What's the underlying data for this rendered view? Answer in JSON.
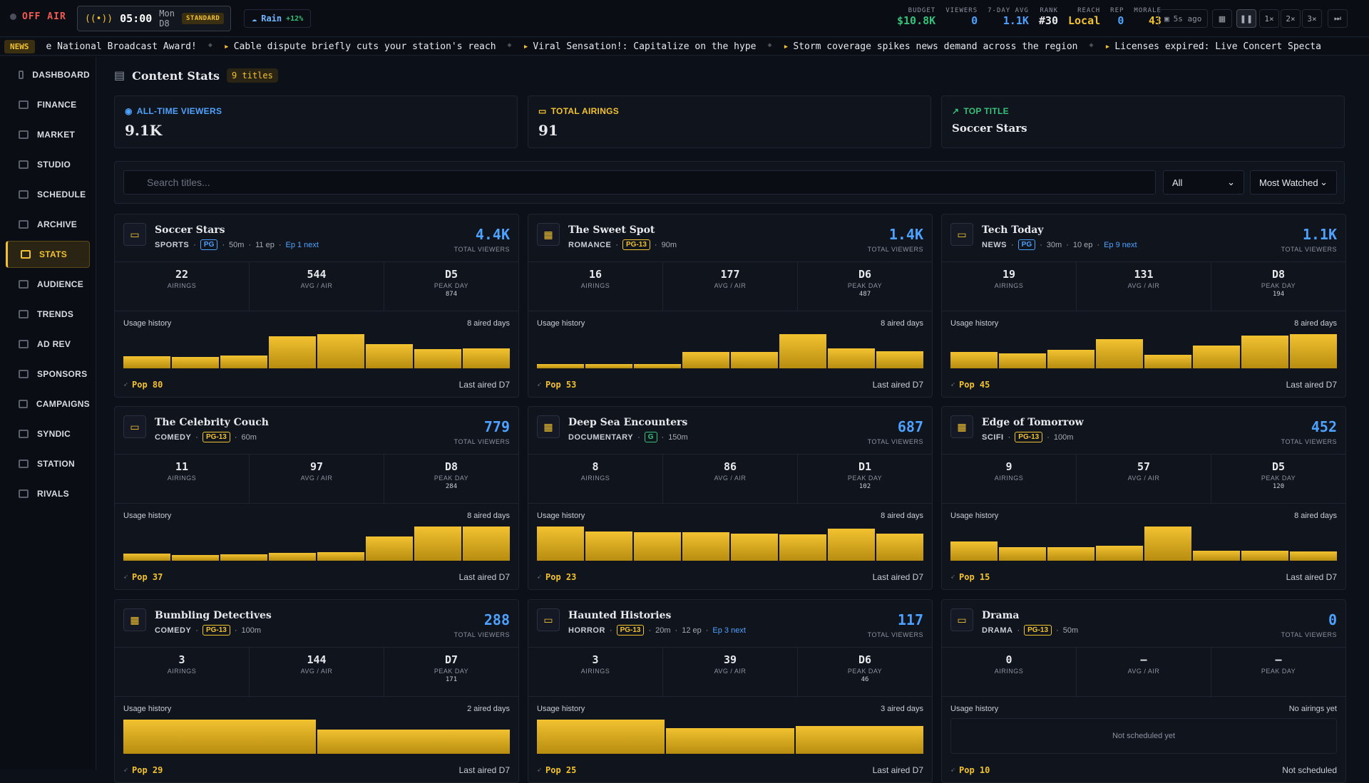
{
  "topbar": {
    "status": "OFF AIR",
    "time": "05:00",
    "day": "Mon D8",
    "speed_mode": "STANDARD",
    "weather": "Rain",
    "weather_mod": "+12%",
    "stats": [
      {
        "label": "BUDGET",
        "value": "$10.8K",
        "color": "#36c27a"
      },
      {
        "label": "VIEWERS",
        "value": "0",
        "color": "#4ea2ff"
      },
      {
        "label": "7-DAY AVG",
        "value": "1.1K",
        "color": "#4ea2ff"
      },
      {
        "label": "RANK",
        "value": "#30",
        "color": "#e6e8ec"
      },
      {
        "label": "REACH",
        "value": "Local",
        "color": "#f2c230"
      },
      {
        "label": "REP",
        "value": "0",
        "color": "#4ea2ff"
      },
      {
        "label": "MORALE",
        "value": "43",
        "color": "#f2c230"
      }
    ],
    "saved": "5s ago",
    "speeds": [
      "1×",
      "2×",
      "3×"
    ]
  },
  "ticker": {
    "badge": "NEWS",
    "items": [
      "e National Broadcast Award!",
      "Cable dispute briefly cuts your station's reach",
      "Viral Sensation!: Capitalize on the hype",
      "Storm coverage spikes news demand across the region",
      "Licenses expired: Live Concert Specta"
    ]
  },
  "sidebar": [
    "DASHBOARD",
    "FINANCE",
    "MARKET",
    "STUDIO",
    "SCHEDULE",
    "ARCHIVE",
    "STATS",
    "AUDIENCE",
    "TRENDS",
    "AD REV",
    "SPONSORS",
    "CAMPAIGNS",
    "SYNDIC",
    "STATION",
    "RIVALS"
  ],
  "page": {
    "title": "Content Stats",
    "count": "9 titles"
  },
  "kpis": [
    {
      "label": "ALL-TIME VIEWERS",
      "value": "9.1K",
      "color": "#4ea2ff",
      "icon": "eye-icon"
    },
    {
      "label": "TOTAL AIRINGS",
      "value": "91",
      "color": "#f2c230",
      "icon": "tv-icon"
    },
    {
      "label": "TOP TITLE",
      "value": "Soccer Stars",
      "color": "#36c27a",
      "icon": "trend-up-icon"
    }
  ],
  "filters": {
    "search_placeholder": "Search titles...",
    "category": "All",
    "sort": "Most Watched"
  },
  "labels": {
    "total_viewers": "TOTAL VIEWERS",
    "airings": "AIRINGS",
    "avg": "AVG / AIR",
    "peak": "PEAK DAY",
    "usage": "Usage history",
    "last_prefix": "Last aired"
  },
  "cards": [
    {
      "title": "Soccer Stars",
      "genre": "SPORTS",
      "rating": "PG",
      "runtime": "50m",
      "episodes": "11 ep",
      "next": "Ep 1 next",
      "viewers": "4.4K",
      "airings": "22",
      "avg": "544",
      "peak": "D5",
      "peak_val": "874",
      "days": "8 aired days",
      "usage": [
        0.35,
        0.33,
        0.37,
        0.93,
        1.0,
        0.7,
        0.57,
        0.58
      ],
      "pop": "Pop 80",
      "last": "Last aired D7",
      "icon": "tv-icon"
    },
    {
      "title": "The Sweet Spot",
      "genre": "ROMANCE",
      "rating": "PG-13",
      "runtime": "90m",
      "episodes": "",
      "next": "",
      "viewers": "1.4K",
      "airings": "16",
      "avg": "177",
      "peak": "D6",
      "peak_val": "487",
      "days": "8 aired days",
      "usage": [
        0.13,
        0.13,
        0.13,
        0.47,
        0.47,
        1.0,
        0.58,
        0.5
      ],
      "pop": "Pop 53",
      "last": "Last aired D7",
      "icon": "film-icon"
    },
    {
      "title": "Tech Today",
      "genre": "NEWS",
      "rating": "PG",
      "runtime": "30m",
      "episodes": "10 ep",
      "next": "Ep 9 next",
      "viewers": "1.1K",
      "airings": "19",
      "avg": "131",
      "peak": "D8",
      "peak_val": "194",
      "days": "8 aired days",
      "usage": [
        0.48,
        0.43,
        0.55,
        0.85,
        0.4,
        0.67,
        0.96,
        1.0
      ],
      "pop": "Pop 45",
      "last": "Last aired D7",
      "icon": "tv-icon"
    },
    {
      "title": "The Celebrity Couch",
      "genre": "COMEDY",
      "rating": "PG-13",
      "runtime": "60m",
      "episodes": "",
      "next": "",
      "viewers": "779",
      "airings": "11",
      "avg": "97",
      "peak": "D8",
      "peak_val": "284",
      "days": "8 aired days",
      "usage": [
        0.2,
        0.16,
        0.19,
        0.23,
        0.25,
        0.7,
        1.0,
        1.0
      ],
      "pop": "Pop 37",
      "last": "Last aired D7",
      "icon": "tv-icon"
    },
    {
      "title": "Deep Sea Encounters",
      "genre": "DOCUMENTARY",
      "rating": "G",
      "runtime": "150m",
      "episodes": "",
      "next": "",
      "viewers": "687",
      "airings": "8",
      "avg": "86",
      "peak": "D1",
      "peak_val": "102",
      "days": "8 aired days",
      "usage": [
        1.0,
        0.86,
        0.84,
        0.84,
        0.8,
        0.78,
        0.93,
        0.8
      ],
      "pop": "Pop 23",
      "last": "Last aired D7",
      "icon": "film-icon"
    },
    {
      "title": "Edge of Tomorrow",
      "genre": "SCIFI",
      "rating": "PG-13",
      "runtime": "100m",
      "episodes": "",
      "next": "",
      "viewers": "452",
      "airings": "9",
      "avg": "57",
      "peak": "D5",
      "peak_val": "120",
      "days": "8 aired days",
      "usage": [
        0.56,
        0.4,
        0.4,
        0.44,
        1.0,
        0.3,
        0.3,
        0.28
      ],
      "pop": "Pop 15",
      "last": "Last aired D7",
      "icon": "film-icon"
    },
    {
      "title": "Bumbling Detectives",
      "genre": "COMEDY",
      "rating": "PG-13",
      "runtime": "100m",
      "episodes": "",
      "next": "",
      "viewers": "288",
      "airings": "3",
      "avg": "144",
      "peak": "D7",
      "peak_val": "171",
      "days": "2 aired days",
      "usage": [
        1.0,
        0.7
      ],
      "pop": "Pop 29",
      "last": "Last aired D7",
      "icon": "film-icon"
    },
    {
      "title": "Haunted Histories",
      "genre": "HORROR",
      "rating": "PG-13",
      "runtime": "20m",
      "episodes": "12 ep",
      "next": "Ep 3 next",
      "viewers": "117",
      "airings": "3",
      "avg": "39",
      "peak": "D6",
      "peak_val": "46",
      "days": "3 aired days",
      "usage": [
        1.0,
        0.76,
        0.82
      ],
      "pop": "Pop 25",
      "last": "Last aired D7",
      "icon": "tv-icon"
    },
    {
      "title": "Drama",
      "genre": "DRAMA",
      "rating": "PG-13",
      "runtime": "50m",
      "episodes": "",
      "next": "",
      "viewers": "0",
      "airings": "0",
      "avg": "—",
      "peak": "—",
      "peak_val": "",
      "days": "No airings yet",
      "usage": [],
      "empty": "Not scheduled yet",
      "pop": "Pop 10",
      "last": "Not scheduled",
      "icon": "tv-icon"
    }
  ]
}
